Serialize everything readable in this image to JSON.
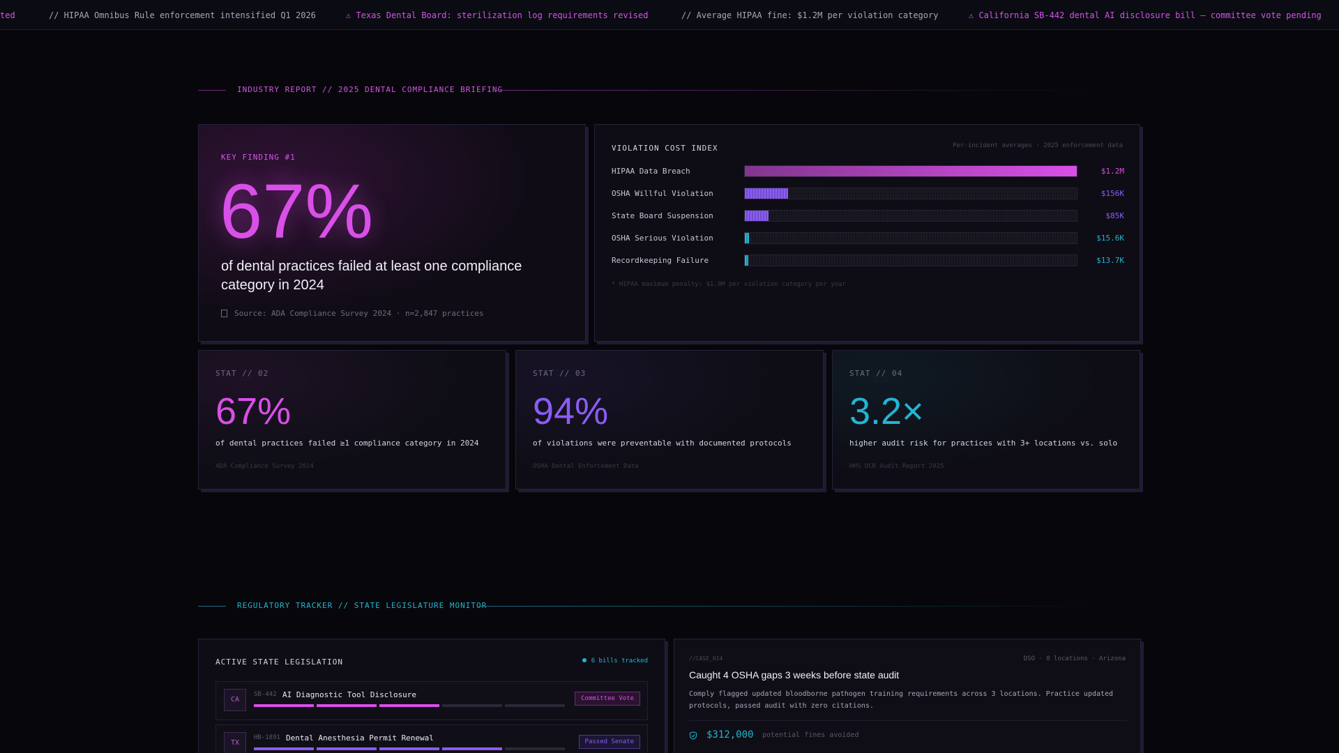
{
  "ticker": [
    {
      "text": "ted",
      "kind": "warn"
    },
    {
      "text": "// HIPAA Omnibus Rule enforcement intensified Q1 2026",
      "kind": "plain"
    },
    {
      "text": "⚠ Texas Dental Board: sterilization log requirements revised",
      "kind": "warn"
    },
    {
      "text": "// Average HIPAA fine: $1.2M per violation category",
      "kind": "plain"
    },
    {
      "text": "⚠ California SB-442 dental AI disclosure bill — committee vote pending",
      "kind": "warn"
    }
  ],
  "section1": {
    "label": "INDUSTRY REPORT // 2025 DENTAL COMPLIANCE BRIEFING"
  },
  "key_finding": {
    "eyebrow": "KEY FINDING #1",
    "value": "67%",
    "description": "of dental practices failed at least one compliance category in 2024",
    "source": "Source: ADA Compliance Survey 2024 · n=2,847 practices"
  },
  "violation_index": {
    "title": "VIOLATION COST INDEX",
    "subtitle": "Per-incident averages · 2025 enforcement data",
    "footnote": "* HIPAA maximum penalty: $1.9M per violation category per year",
    "rows": [
      {
        "name": "HIPAA Data Breach",
        "value_label": "$1.2M",
        "amount": 1200000,
        "color": "#d94fe8"
      },
      {
        "name": "OSHA Willful Violation",
        "value_label": "$156K",
        "amount": 156000,
        "color": "#8b5cf6"
      },
      {
        "name": "State Board Suspension",
        "value_label": "$85K",
        "amount": 85000,
        "color": "#8b5cf6"
      },
      {
        "name": "OSHA Serious Violation",
        "value_label": "$15.6K",
        "amount": 15600,
        "color": "#22b5d2"
      },
      {
        "name": "Recordkeeping Failure",
        "value_label": "$13.7K",
        "amount": 13700,
        "color": "#22b5d2"
      }
    ]
  },
  "stats": [
    {
      "eyebrow": "STAT // 02",
      "value": "67%",
      "description": "of dental practices failed ≥1 compliance category in 2024",
      "source": "ADA Compliance Survey 2024",
      "color": "#d94fe8"
    },
    {
      "eyebrow": "STAT // 03",
      "value": "94%",
      "description": "of violations were preventable with documented protocols",
      "source": "OSHA Dental Enforcement Data",
      "color": "#8b5cf6"
    },
    {
      "eyebrow": "STAT // 04",
      "value": "3.2×",
      "description": "higher audit risk for practices with 3+ locations vs. solo",
      "source": "HHS OCR Audit Report 2025",
      "color": "#22b5d2"
    }
  ],
  "section2": {
    "label": "REGULATORY TRACKER // STATE LEGISLATURE MONITOR"
  },
  "legislation": {
    "title": "ACTIVE STATE LEGISLATION",
    "tracked": "6 bills tracked",
    "bills": [
      {
        "state": "CA",
        "code": "SB-442",
        "name": "AI Diagnostic Tool Disclosure",
        "status": "Committee Vote",
        "progress": 3,
        "steps": 5,
        "color": "#d94fe8",
        "badge_bg": "#2a1230",
        "badge_border": "#6c2d7d"
      },
      {
        "state": "TX",
        "code": "HB-1891",
        "name": "Dental Anesthesia Permit Renewal",
        "status": "Passed Senate",
        "progress": 4,
        "steps": 5,
        "color": "#8b5cf6",
        "badge_bg": "#1c1536",
        "badge_border": "#4d3b8a"
      }
    ]
  },
  "case_study": {
    "id": "//CASE_014",
    "meta": "DSO · 8 locations · Arizona",
    "headline": "Caught 4 OSHA gaps 3 weeks before state audit",
    "body": "Comply flagged updated bloodborne pathogen training requirements across 3 locations. Practice updated protocols, passed audit with zero citations.",
    "amount": "$312,000",
    "amount_label": "potential fines avoided"
  }
}
